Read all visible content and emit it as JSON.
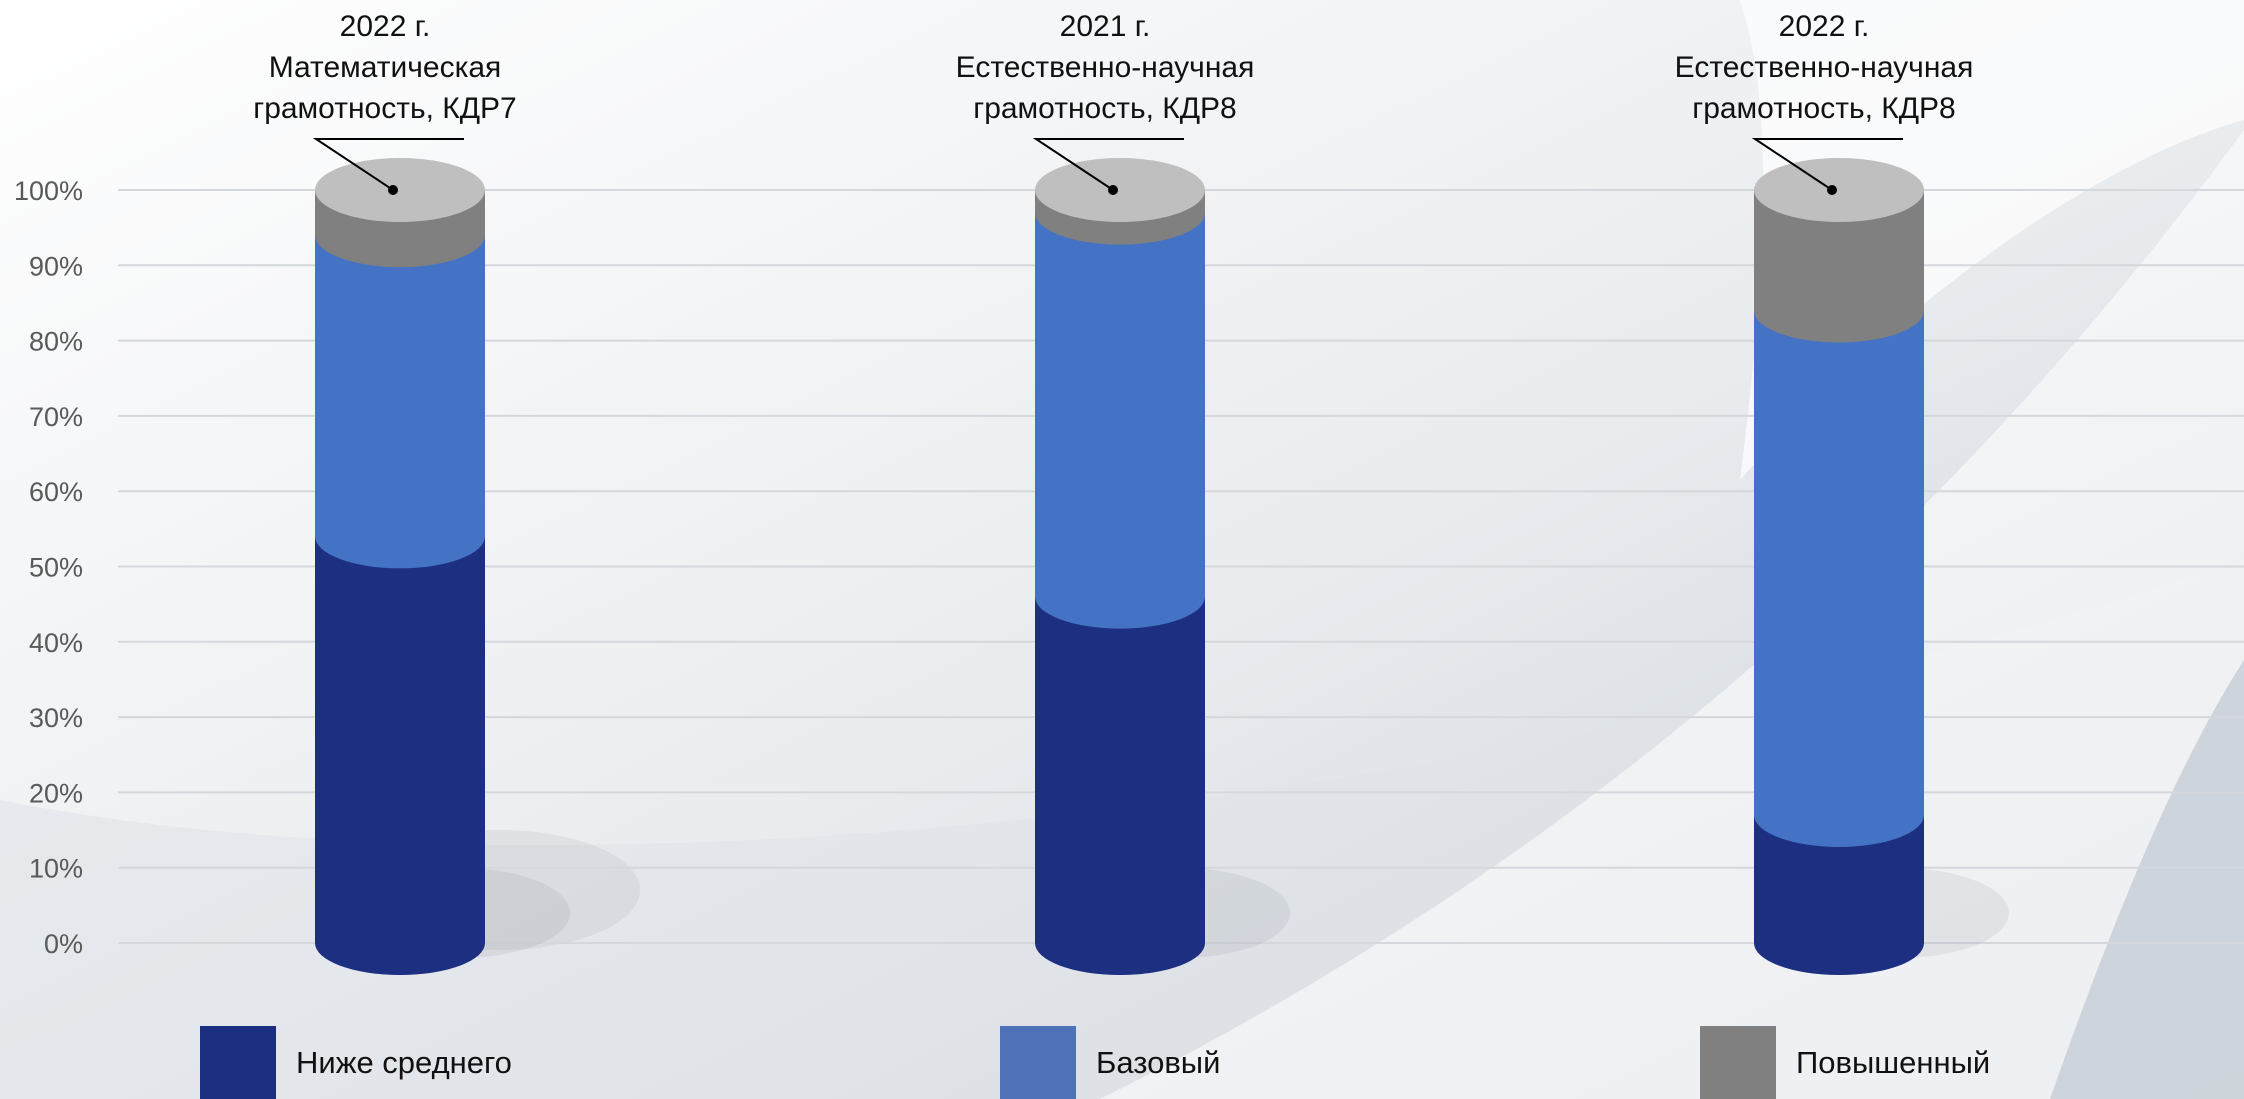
{
  "chart_data": {
    "type": "bar",
    "stacked": true,
    "categories": [
      "2022 г.\nМатематическая\nграмотность, КДР7",
      "2021 г.\nЕстественно-научная\nграмотность, КДР8",
      "2022 г.\nЕстественно-научная\nграмотность, КДР8"
    ],
    "series": [
      {
        "name": "Ниже среднего",
        "values": [
          54,
          46,
          17
        ],
        "color": "#1c2f80"
      },
      {
        "name": "Базовый",
        "values": [
          40,
          51,
          67
        ],
        "color": "#4472c4"
      },
      {
        "name": "Повышенный",
        "values": [
          6,
          3,
          16
        ],
        "color": "#808080"
      }
    ],
    "yticks": [
      "0%",
      "10%",
      "20%",
      "30%",
      "40%",
      "50%",
      "60%",
      "70%",
      "80%",
      "90%",
      "100%"
    ],
    "ylim": [
      0,
      100
    ],
    "grid": true,
    "legend_position": "bottom"
  }
}
